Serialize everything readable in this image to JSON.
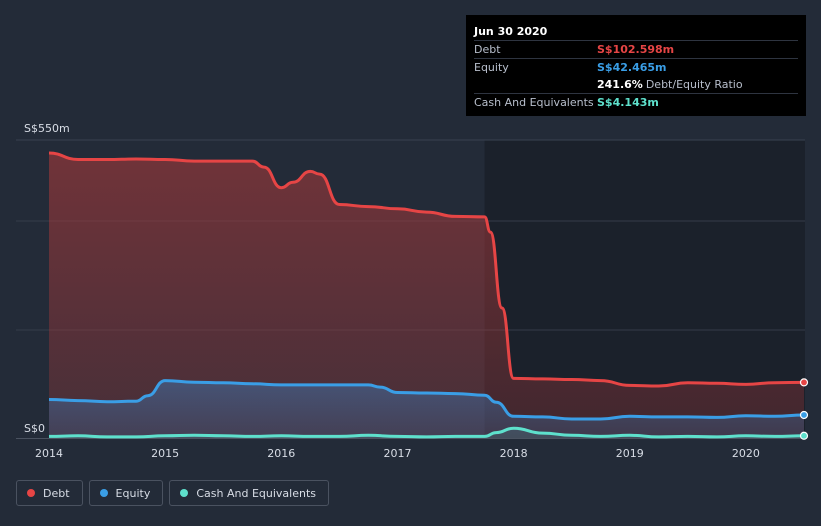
{
  "tooltip": {
    "date": "Jun 30 2020",
    "rows": [
      {
        "label": "Debt",
        "value": "S$102.598m",
        "color": "#e64545"
      },
      {
        "label": "Equity",
        "value": "S$42.465m",
        "color": "#3a9ee6"
      },
      {
        "label": "",
        "value": "241.6%",
        "extra": "Debt/Equity Ratio",
        "color": "#ffffff"
      },
      {
        "label": "Cash And Equivalents",
        "value": "S$4.143m",
        "color": "#5ee0cc"
      }
    ]
  },
  "legend": [
    {
      "label": "Debt",
      "color": "#e64545"
    },
    {
      "label": "Equity",
      "color": "#3a9ee6"
    },
    {
      "label": "Cash And Equivalents",
      "color": "#5ee0cc"
    }
  ],
  "chart_data": {
    "type": "area",
    "y_top_label": "S$550m",
    "y_zero_label": "S$0",
    "ylim": [
      0,
      550
    ],
    "xlim": [
      2014,
      2020.5
    ],
    "x_ticks": [
      "2014",
      "2015",
      "2016",
      "2017",
      "2018",
      "2019",
      "2020"
    ],
    "x_tick_values": [
      2014,
      2015,
      2016,
      2017,
      2018,
      2019,
      2020
    ],
    "highlight_from_x": 2017.75,
    "series": [
      {
        "name": "Debt",
        "color": "#e64545",
        "points": [
          [
            2014,
            526
          ],
          [
            2014.25,
            514
          ],
          [
            2014.5,
            514
          ],
          [
            2014.75,
            515
          ],
          [
            2015,
            514
          ],
          [
            2015.25,
            511
          ],
          [
            2015.5,
            511
          ],
          [
            2015.75,
            511
          ],
          [
            2015.85,
            500
          ],
          [
            2016,
            462
          ],
          [
            2016.1,
            472
          ],
          [
            2016.25,
            492
          ],
          [
            2016.33,
            487
          ],
          [
            2016.5,
            431
          ],
          [
            2016.75,
            427
          ],
          [
            2017,
            423
          ],
          [
            2017.25,
            417
          ],
          [
            2017.5,
            409
          ],
          [
            2017.75,
            408
          ],
          [
            2017.8,
            380
          ],
          [
            2017.9,
            240
          ],
          [
            2018,
            110
          ],
          [
            2018.25,
            109
          ],
          [
            2018.5,
            108
          ],
          [
            2018.75,
            106
          ],
          [
            2019,
            97
          ],
          [
            2019.25,
            96
          ],
          [
            2019.5,
            102
          ],
          [
            2019.75,
            101
          ],
          [
            2020,
            99
          ],
          [
            2020.25,
            102
          ],
          [
            2020.5,
            102.6
          ]
        ]
      },
      {
        "name": "Equity",
        "color": "#3a9ee6",
        "points": [
          [
            2014,
            71
          ],
          [
            2014.25,
            69
          ],
          [
            2014.5,
            67
          ],
          [
            2014.75,
            68
          ],
          [
            2014.85,
            78
          ],
          [
            2015,
            106
          ],
          [
            2015.25,
            103
          ],
          [
            2015.5,
            102
          ],
          [
            2015.75,
            100
          ],
          [
            2016,
            98
          ],
          [
            2016.25,
            98
          ],
          [
            2016.5,
            98
          ],
          [
            2016.75,
            98
          ],
          [
            2016.85,
            94
          ],
          [
            2017,
            84
          ],
          [
            2017.25,
            83
          ],
          [
            2017.5,
            82
          ],
          [
            2017.75,
            79
          ],
          [
            2017.85,
            66
          ],
          [
            2018,
            40
          ],
          [
            2018.25,
            39
          ],
          [
            2018.5,
            35
          ],
          [
            2018.75,
            35
          ],
          [
            2019,
            40
          ],
          [
            2019.25,
            39
          ],
          [
            2019.5,
            39
          ],
          [
            2019.75,
            38
          ],
          [
            2020,
            41
          ],
          [
            2020.25,
            40
          ],
          [
            2020.5,
            42.5
          ]
        ]
      },
      {
        "name": "Cash And Equivalents",
        "color": "#5ee0cc",
        "points": [
          [
            2014,
            3
          ],
          [
            2014.25,
            4
          ],
          [
            2014.5,
            2
          ],
          [
            2014.75,
            2
          ],
          [
            2015,
            4
          ],
          [
            2015.25,
            5
          ],
          [
            2015.5,
            4
          ],
          [
            2015.75,
            3
          ],
          [
            2016,
            4
          ],
          [
            2016.25,
            3
          ],
          [
            2016.5,
            3
          ],
          [
            2016.75,
            5
          ],
          [
            2017,
            3
          ],
          [
            2017.25,
            2
          ],
          [
            2017.5,
            3
          ],
          [
            2017.75,
            3
          ],
          [
            2017.85,
            10
          ],
          [
            2018,
            18
          ],
          [
            2018.25,
            9
          ],
          [
            2018.5,
            5
          ],
          [
            2018.75,
            3
          ],
          [
            2019,
            5
          ],
          [
            2019.25,
            2
          ],
          [
            2019.5,
            3
          ],
          [
            2019.75,
            2
          ],
          [
            2020,
            4
          ],
          [
            2020.25,
            3
          ],
          [
            2020.5,
            4.1
          ]
        ]
      }
    ]
  }
}
